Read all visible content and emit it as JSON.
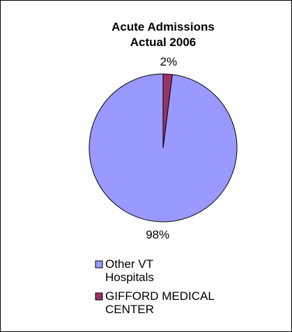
{
  "chart_data": {
    "type": "pie",
    "title": [
      "Acute Admissions",
      "Actual 2006"
    ],
    "categories": [
      "Other VT Hospitals",
      "GIFFORD MEDICAL CENTER"
    ],
    "values": [
      98,
      2
    ],
    "value_labels": [
      "98%",
      "2%"
    ],
    "colors": [
      "#9999ff",
      "#993366"
    ],
    "legend": "bottom"
  }
}
